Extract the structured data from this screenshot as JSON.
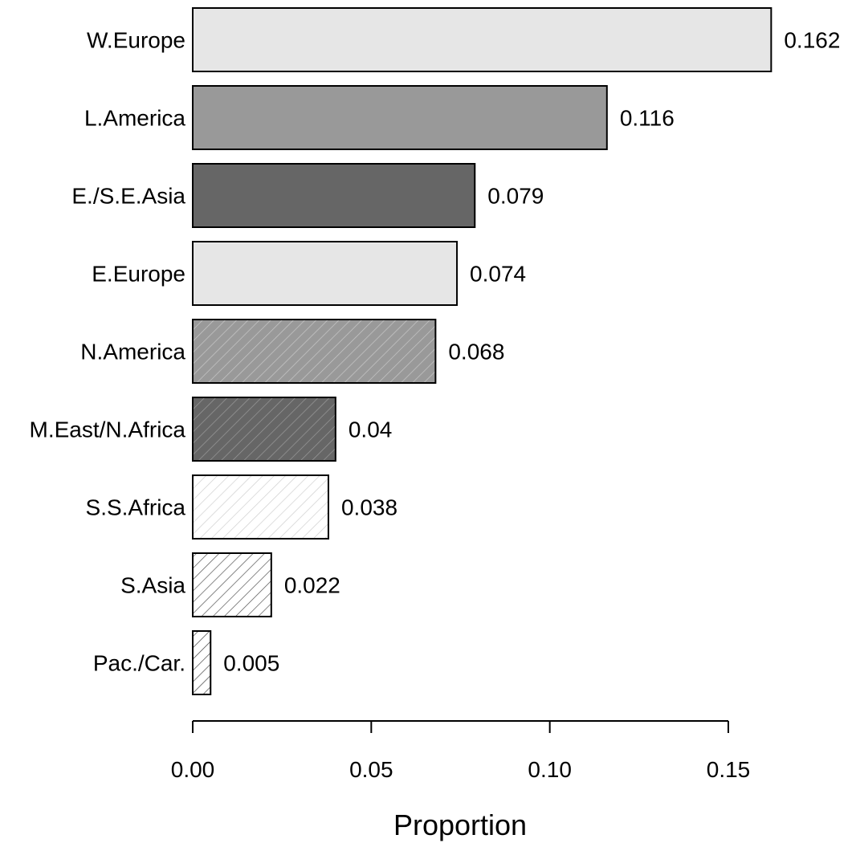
{
  "chart_data": {
    "type": "bar",
    "orientation": "horizontal",
    "categories": [
      "W.Europe",
      "L.America",
      "E./S.E.Asia",
      "E.Europe",
      "N.America",
      "M.East/N.Africa",
      "S.S.Africa",
      "S.Asia",
      "Pac./Car."
    ],
    "values": [
      0.162,
      0.116,
      0.079,
      0.074,
      0.068,
      0.04,
      0.038,
      0.022,
      0.005
    ],
    "value_labels": [
      "0.162",
      "0.116",
      "0.079",
      "0.074",
      "0.068",
      "0.04",
      "0.038",
      "0.022",
      "0.005"
    ],
    "fills": [
      "#e6e6e6",
      "#999999",
      "#666666",
      "#e6e6e6",
      "#999999",
      "#666666",
      "#ffffff",
      "#ffffff",
      "#ffffff"
    ],
    "hatched": [
      false,
      false,
      false,
      false,
      true,
      true,
      true,
      true,
      true
    ],
    "hatch_colors": [
      "",
      "",
      "",
      "",
      "#c8c8c8",
      "#9a9a9a",
      "#cfcfcf",
      "#555555",
      "#444444"
    ],
    "xlabel": "Proportion",
    "xlim": [
      0,
      0.15
    ],
    "x_ticks": [
      0.0,
      0.05,
      0.1,
      0.15
    ],
    "x_tick_labels": [
      "0.00",
      "0.05",
      "0.10",
      "0.15"
    ],
    "grid": false,
    "legend": "none"
  }
}
